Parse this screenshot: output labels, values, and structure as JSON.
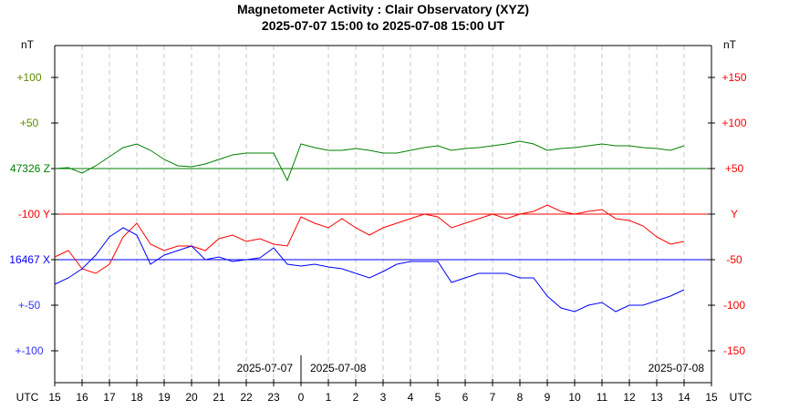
{
  "chart_data": {
    "type": "line",
    "title": "Magnetometer Activity : Clair Observatory (XYZ)",
    "subtitle": "2025-07-07 15:00 to 2025-07-08 15:00 UT",
    "unit_left": "nT",
    "unit_right": "nT",
    "xlabel": "UTC",
    "x_ticks": [
      "15",
      "16",
      "17",
      "18",
      "19",
      "20",
      "21",
      "22",
      "23",
      "0",
      "1",
      "2",
      "3",
      "4",
      "5",
      "6",
      "7",
      "8",
      "9",
      "10",
      "11",
      "12",
      "13",
      "14",
      "15"
    ],
    "date_labels": [
      "2025-07-07",
      "2025-07-08",
      "2025-07-08"
    ],
    "grid": "vertical dashed at each hour",
    "colors": {
      "Z": "#008000",
      "Y": "#ff0000",
      "X": "#0000ff",
      "Z_label": "#5a8a00",
      "X_label": "#3333ff"
    },
    "left_axis_labels": [
      "+100",
      "+50",
      "47326 Z",
      "-100   Y",
      "16467 X",
      "+-50",
      "+-100"
    ],
    "right_axis_labels": [
      "+150",
      "+100",
      "+50",
      "Y",
      "-50",
      "-100",
      "-150"
    ],
    "x": [
      15,
      15.5,
      16,
      16.5,
      17,
      17.5,
      18,
      18.5,
      19,
      19.5,
      20,
      20.5,
      21,
      21.5,
      22,
      22.5,
      23,
      23.5,
      0,
      0.5,
      1,
      1.5,
      2,
      2.5,
      3,
      3.5,
      4,
      4.5,
      5,
      5.5,
      6,
      6.5,
      7,
      7.5,
      8,
      8.5,
      9,
      9.5,
      10,
      10.5,
      11,
      11.5,
      12,
      12.5,
      13,
      13.5,
      14
    ],
    "series": [
      {
        "name": "Z",
        "baseline": 47326,
        "values": [
          0,
          1,
          -5,
          3,
          13,
          23,
          27,
          20,
          10,
          3,
          2,
          5,
          10,
          15,
          17,
          17,
          17,
          -13,
          27,
          23,
          20,
          20,
          22,
          20,
          17,
          17,
          20,
          23,
          25,
          20,
          22,
          23,
          25,
          27,
          30,
          27,
          20,
          22,
          23,
          25,
          27,
          25,
          25,
          23,
          22,
          20,
          25
        ]
      },
      {
        "name": "Y",
        "baseline": -100,
        "values": [
          -47,
          -40,
          -60,
          -65,
          -55,
          -25,
          -10,
          -33,
          -40,
          -35,
          -35,
          -40,
          -27,
          -23,
          -30,
          -27,
          -33,
          -35,
          -3,
          -10,
          -15,
          -5,
          -15,
          -23,
          -15,
          -10,
          -5,
          0,
          -3,
          -15,
          -10,
          -5,
          0,
          -5,
          0,
          3,
          10,
          3,
          0,
          3,
          5,
          -5,
          -7,
          -13,
          -25,
          -33,
          -30
        ]
      },
      {
        "name": "X",
        "baseline": 16467,
        "values": [
          -27,
          -20,
          -10,
          5,
          25,
          35,
          27,
          -5,
          5,
          10,
          15,
          0,
          3,
          -2,
          0,
          2,
          13,
          -5,
          -7,
          -5,
          -8,
          -10,
          -15,
          -20,
          -13,
          -5,
          -2,
          -2,
          -2,
          -25,
          -20,
          -15,
          -15,
          -15,
          -20,
          -20,
          -40,
          -53,
          -57,
          -50,
          -47,
          -57,
          -50,
          -50,
          -45,
          -40,
          -33
        ]
      }
    ]
  }
}
